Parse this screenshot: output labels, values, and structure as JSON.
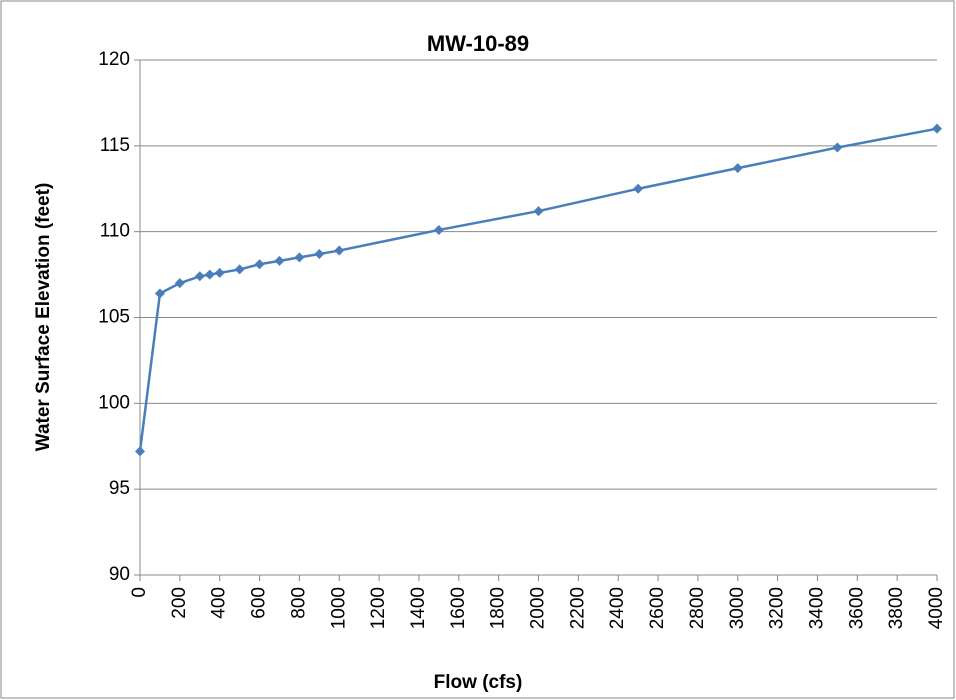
{
  "chart_data": {
    "type": "line",
    "title": "MW-10-89",
    "x_label": "Flow (cfs)",
    "y_label": "Water Surface Elevation (feet)",
    "x": [
      0,
      100,
      200,
      300,
      350,
      400,
      500,
      600,
      700,
      800,
      900,
      1000,
      1500,
      2000,
      2500,
      3000,
      3500,
      4000
    ],
    "series": [
      {
        "name": "MW-10-89",
        "color": "#4a7ebb",
        "values": [
          97.2,
          106.4,
          107.0,
          107.4,
          107.5,
          107.6,
          107.8,
          108.1,
          108.3,
          108.5,
          108.7,
          108.9,
          110.1,
          111.2,
          112.5,
          113.7,
          114.9,
          116.0
        ]
      }
    ],
    "xlim": [
      0,
      4000
    ],
    "xticks": [
      0,
      200,
      400,
      600,
      800,
      1000,
      1200,
      1400,
      1600,
      1800,
      2000,
      2200,
      2400,
      2600,
      2800,
      3000,
      3200,
      3400,
      3600,
      3800,
      4000
    ],
    "ylim": [
      90,
      120
    ],
    "yticks": [
      90,
      95,
      100,
      105,
      110,
      115,
      120
    ],
    "grid": true
  }
}
